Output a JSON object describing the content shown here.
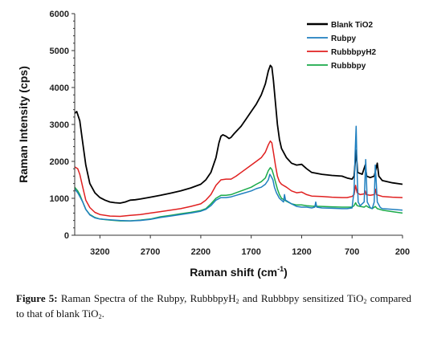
{
  "chart_data": {
    "type": "line",
    "ylabel": "Raman Intensity (cps)",
    "xlabel": {
      "base": "Raman shift (cm",
      "sup": "-1",
      "tail": ")"
    },
    "xlim": [
      3450,
      200
    ],
    "ylim": [
      0,
      6000
    ],
    "x_reversed": true,
    "xticks": [
      3200,
      2700,
      2200,
      1700,
      1200,
      700,
      200
    ],
    "yticks": [
      0,
      1000,
      2000,
      3000,
      4000,
      5000,
      6000
    ],
    "legend_position": "top-right",
    "series": [
      {
        "name": "Blank TiO2",
        "color": "#000000",
        "points": [
          [
            3450,
            3300
          ],
          [
            3430,
            3350
          ],
          [
            3400,
            3100
          ],
          [
            3370,
            2500
          ],
          [
            3340,
            1900
          ],
          [
            3300,
            1400
          ],
          [
            3250,
            1150
          ],
          [
            3200,
            1020
          ],
          [
            3150,
            950
          ],
          [
            3100,
            900
          ],
          [
            3050,
            880
          ],
          [
            3000,
            870
          ],
          [
            2950,
            900
          ],
          [
            2900,
            950
          ],
          [
            2850,
            960
          ],
          [
            2800,
            980
          ],
          [
            2700,
            1030
          ],
          [
            2600,
            1080
          ],
          [
            2500,
            1140
          ],
          [
            2400,
            1200
          ],
          [
            2300,
            1280
          ],
          [
            2200,
            1380
          ],
          [
            2150,
            1500
          ],
          [
            2100,
            1700
          ],
          [
            2050,
            2100
          ],
          [
            2020,
            2500
          ],
          [
            2000,
            2680
          ],
          [
            1980,
            2720
          ],
          [
            1950,
            2680
          ],
          [
            1920,
            2620
          ],
          [
            1900,
            2650
          ],
          [
            1870,
            2750
          ],
          [
            1800,
            2950
          ],
          [
            1750,
            3150
          ],
          [
            1700,
            3350
          ],
          [
            1650,
            3550
          ],
          [
            1600,
            3800
          ],
          [
            1560,
            4100
          ],
          [
            1530,
            4450
          ],
          [
            1510,
            4600
          ],
          [
            1495,
            4550
          ],
          [
            1480,
            4200
          ],
          [
            1460,
            3600
          ],
          [
            1440,
            3000
          ],
          [
            1420,
            2600
          ],
          [
            1400,
            2350
          ],
          [
            1350,
            2100
          ],
          [
            1300,
            1950
          ],
          [
            1250,
            1900
          ],
          [
            1200,
            1920
          ],
          [
            1150,
            1800
          ],
          [
            1100,
            1700
          ],
          [
            1000,
            1650
          ],
          [
            900,
            1620
          ],
          [
            800,
            1600
          ],
          [
            750,
            1550
          ],
          [
            700,
            1520
          ],
          [
            680,
            1600
          ],
          [
            660,
            2300
          ],
          [
            645,
            1700
          ],
          [
            600,
            1650
          ],
          [
            570,
            1900
          ],
          [
            555,
            1600
          ],
          [
            520,
            1560
          ],
          [
            480,
            1600
          ],
          [
            450,
            1950
          ],
          [
            435,
            1600
          ],
          [
            400,
            1480
          ],
          [
            300,
            1420
          ],
          [
            200,
            1380
          ]
        ]
      },
      {
        "name": "Rubpy",
        "color": "#1f7fbf",
        "points": [
          [
            3450,
            1250
          ],
          [
            3420,
            1150
          ],
          [
            3400,
            1050
          ],
          [
            3370,
            900
          ],
          [
            3340,
            700
          ],
          [
            3300,
            550
          ],
          [
            3250,
            470
          ],
          [
            3200,
            440
          ],
          [
            3100,
            420
          ],
          [
            3000,
            400
          ],
          [
            2900,
            390
          ],
          [
            2800,
            400
          ],
          [
            2700,
            430
          ],
          [
            2600,
            480
          ],
          [
            2500,
            520
          ],
          [
            2400,
            560
          ],
          [
            2300,
            600
          ],
          [
            2200,
            650
          ],
          [
            2150,
            700
          ],
          [
            2100,
            800
          ],
          [
            2050,
            950
          ],
          [
            2000,
            1020
          ],
          [
            1950,
            1020
          ],
          [
            1900,
            1040
          ],
          [
            1850,
            1080
          ],
          [
            1800,
            1120
          ],
          [
            1700,
            1200
          ],
          [
            1650,
            1260
          ],
          [
            1600,
            1300
          ],
          [
            1560,
            1380
          ],
          [
            1530,
            1500
          ],
          [
            1515,
            1650
          ],
          [
            1500,
            1580
          ],
          [
            1485,
            1500
          ],
          [
            1470,
            1300
          ],
          [
            1450,
            1150
          ],
          [
            1420,
            1000
          ],
          [
            1400,
            950
          ],
          [
            1380,
            900
          ],
          [
            1370,
            1100
          ],
          [
            1360,
            950
          ],
          [
            1300,
            850
          ],
          [
            1250,
            780
          ],
          [
            1200,
            760
          ],
          [
            1150,
            760
          ],
          [
            1100,
            740
          ],
          [
            1070,
            760
          ],
          [
            1060,
            900
          ],
          [
            1050,
            760
          ],
          [
            1000,
            740
          ],
          [
            900,
            730
          ],
          [
            800,
            720
          ],
          [
            750,
            720
          ],
          [
            700,
            740
          ],
          [
            680,
            1200
          ],
          [
            670,
            2200
          ],
          [
            660,
            2950
          ],
          [
            650,
            1700
          ],
          [
            640,
            900
          ],
          [
            620,
            800
          ],
          [
            580,
            900
          ],
          [
            565,
            2050
          ],
          [
            550,
            900
          ],
          [
            520,
            750
          ],
          [
            500,
            720
          ],
          [
            480,
            900
          ],
          [
            470,
            1900
          ],
          [
            460,
            1400
          ],
          [
            450,
            900
          ],
          [
            420,
            750
          ],
          [
            400,
            720
          ],
          [
            300,
            700
          ],
          [
            200,
            680
          ]
        ]
      },
      {
        "name": "RubbbpyH2",
        "color": "#e02020",
        "points": [
          [
            3450,
            1850
          ],
          [
            3420,
            1800
          ],
          [
            3400,
            1650
          ],
          [
            3370,
            1300
          ],
          [
            3340,
            950
          ],
          [
            3300,
            750
          ],
          [
            3250,
            620
          ],
          [
            3200,
            560
          ],
          [
            3100,
            520
          ],
          [
            3000,
            510
          ],
          [
            2900,
            540
          ],
          [
            2800,
            560
          ],
          [
            2700,
            600
          ],
          [
            2600,
            640
          ],
          [
            2500,
            680
          ],
          [
            2400,
            720
          ],
          [
            2300,
            780
          ],
          [
            2200,
            850
          ],
          [
            2150,
            950
          ],
          [
            2100,
            1100
          ],
          [
            2050,
            1350
          ],
          [
            2000,
            1500
          ],
          [
            1950,
            1520
          ],
          [
            1900,
            1520
          ],
          [
            1850,
            1600
          ],
          [
            1800,
            1700
          ],
          [
            1700,
            1900
          ],
          [
            1650,
            2000
          ],
          [
            1600,
            2100
          ],
          [
            1560,
            2250
          ],
          [
            1530,
            2450
          ],
          [
            1510,
            2550
          ],
          [
            1495,
            2500
          ],
          [
            1480,
            2250
          ],
          [
            1460,
            1900
          ],
          [
            1440,
            1600
          ],
          [
            1420,
            1450
          ],
          [
            1400,
            1380
          ],
          [
            1350,
            1300
          ],
          [
            1300,
            1200
          ],
          [
            1250,
            1150
          ],
          [
            1200,
            1170
          ],
          [
            1150,
            1100
          ],
          [
            1100,
            1060
          ],
          [
            1000,
            1050
          ],
          [
            900,
            1030
          ],
          [
            800,
            1020
          ],
          [
            750,
            1020
          ],
          [
            700,
            1050
          ],
          [
            680,
            1100
          ],
          [
            665,
            1350
          ],
          [
            650,
            1150
          ],
          [
            620,
            1100
          ],
          [
            580,
            1120
          ],
          [
            570,
            1200
          ],
          [
            560,
            1100
          ],
          [
            520,
            1080
          ],
          [
            480,
            1100
          ],
          [
            470,
            1250
          ],
          [
            460,
            1100
          ],
          [
            400,
            1050
          ],
          [
            300,
            1030
          ],
          [
            200,
            1020
          ]
        ]
      },
      {
        "name": "Rubbbpy",
        "color": "#1aaa4a",
        "points": [
          [
            3450,
            1300
          ],
          [
            3420,
            1200
          ],
          [
            3400,
            1100
          ],
          [
            3370,
            900
          ],
          [
            3340,
            700
          ],
          [
            3300,
            560
          ],
          [
            3250,
            480
          ],
          [
            3200,
            440
          ],
          [
            3100,
            410
          ],
          [
            3000,
            390
          ],
          [
            2900,
            390
          ],
          [
            2800,
            410
          ],
          [
            2700,
            440
          ],
          [
            2600,
            500
          ],
          [
            2500,
            540
          ],
          [
            2400,
            580
          ],
          [
            2300,
            620
          ],
          [
            2200,
            670
          ],
          [
            2150,
            720
          ],
          [
            2100,
            850
          ],
          [
            2050,
            1000
          ],
          [
            2000,
            1080
          ],
          [
            1950,
            1080
          ],
          [
            1900,
            1100
          ],
          [
            1850,
            1150
          ],
          [
            1800,
            1200
          ],
          [
            1700,
            1300
          ],
          [
            1650,
            1380
          ],
          [
            1600,
            1450
          ],
          [
            1560,
            1550
          ],
          [
            1530,
            1750
          ],
          [
            1510,
            1830
          ],
          [
            1495,
            1780
          ],
          [
            1480,
            1650
          ],
          [
            1460,
            1450
          ],
          [
            1440,
            1250
          ],
          [
            1420,
            1100
          ],
          [
            1400,
            1000
          ],
          [
            1350,
            920
          ],
          [
            1300,
            850
          ],
          [
            1250,
            820
          ],
          [
            1200,
            820
          ],
          [
            1150,
            800
          ],
          [
            1100,
            790
          ],
          [
            1000,
            780
          ],
          [
            900,
            770
          ],
          [
            800,
            760
          ],
          [
            750,
            760
          ],
          [
            700,
            760
          ],
          [
            680,
            800
          ],
          [
            665,
            880
          ],
          [
            650,
            800
          ],
          [
            620,
            780
          ],
          [
            580,
            760
          ],
          [
            560,
            800
          ],
          [
            540,
            760
          ],
          [
            500,
            720
          ],
          [
            470,
            780
          ],
          [
            450,
            720
          ],
          [
            400,
            680
          ],
          [
            300,
            640
          ],
          [
            200,
            600
          ]
        ]
      }
    ]
  },
  "caption": {
    "label": "Figure 5:",
    "part1": " Raman Spectra of the Rubpy, RubbbpyH",
    "sub1": "2",
    "part2": " and Rubbbpy sensitized TiO",
    "sub2": "2",
    "part3": " compared to that of blank TiO",
    "sub3": "2",
    "part4": "."
  }
}
